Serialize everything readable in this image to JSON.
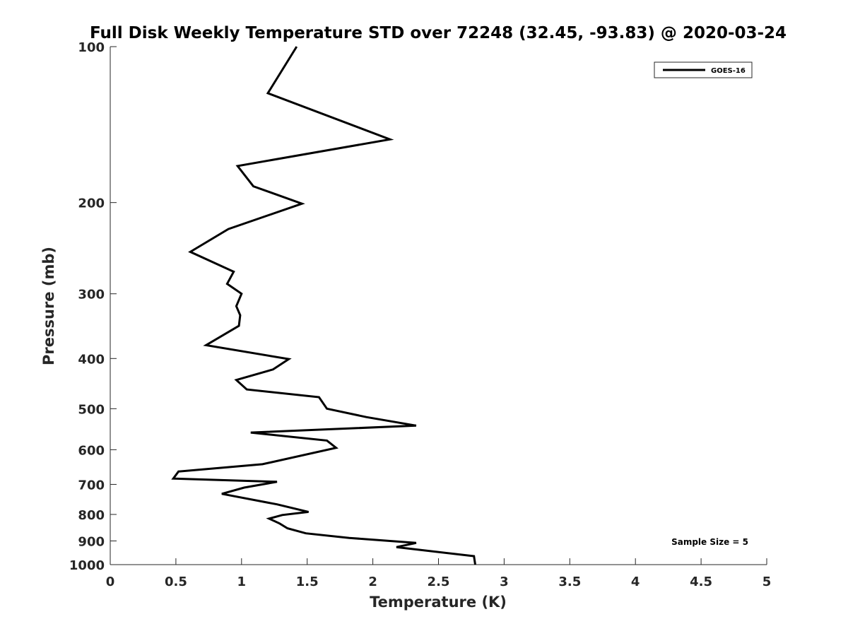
{
  "chart_data": {
    "type": "line",
    "title": "Full Disk Weekly Temperature STD over 72248 (32.45, -93.83) @ 2020-03-24",
    "xlabel": "Temperature (K)",
    "ylabel": "Pressure (mb)",
    "xlim": [
      0,
      5
    ],
    "ylim": [
      100,
      1000
    ],
    "y_scale": "log",
    "y_reversed": true,
    "grid": false,
    "legend_position": "top-right",
    "x_ticks": [
      "0",
      "0.5",
      "1",
      "1.5",
      "2",
      "2.5",
      "3",
      "3.5",
      "4",
      "4.5",
      "5"
    ],
    "y_ticks": [
      "100",
      "200",
      "300",
      "400",
      "500",
      "600",
      "700",
      "800",
      "900",
      "1000"
    ],
    "annotation": "Sample Size = 5",
    "series": [
      {
        "name": "GOES-16",
        "color": "#000000",
        "points": [
          [
            1.42,
            100
          ],
          [
            1.2,
            123
          ],
          [
            2.13,
            151
          ],
          [
            0.97,
            170
          ],
          [
            1.09,
            186
          ],
          [
            1.46,
            201
          ],
          [
            0.9,
            225
          ],
          [
            0.61,
            249
          ],
          [
            0.94,
            272
          ],
          [
            0.89,
            287
          ],
          [
            1.0,
            300
          ],
          [
            0.96,
            317
          ],
          [
            0.99,
            330
          ],
          [
            0.98,
            346
          ],
          [
            0.73,
            377
          ],
          [
            1.36,
            401
          ],
          [
            1.24,
            420
          ],
          [
            0.96,
            440
          ],
          [
            1.04,
            459
          ],
          [
            1.59,
            475
          ],
          [
            1.65,
            500
          ],
          [
            1.95,
            519
          ],
          [
            2.33,
            539
          ],
          [
            1.07,
            556
          ],
          [
            1.65,
            576
          ],
          [
            1.72,
            595
          ],
          [
            1.16,
            640
          ],
          [
            0.52,
            661
          ],
          [
            0.48,
            682
          ],
          [
            1.27,
            692
          ],
          [
            1.02,
            710
          ],
          [
            0.85,
            730
          ],
          [
            1.27,
            765
          ],
          [
            1.51,
            791
          ],
          [
            1.31,
            802
          ],
          [
            1.21,
            815
          ],
          [
            1.29,
            833
          ],
          [
            1.35,
            851
          ],
          [
            1.49,
            870
          ],
          [
            1.82,
            888
          ],
          [
            2.33,
            908
          ],
          [
            2.18,
            925
          ],
          [
            2.77,
            963
          ],
          [
            2.78,
            1000
          ]
        ]
      }
    ]
  }
}
